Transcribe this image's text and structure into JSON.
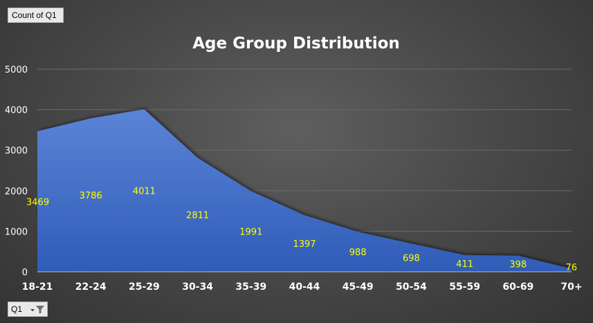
{
  "field_button": {
    "label": "Count  of Q1"
  },
  "filter_button": {
    "label": "Q1"
  },
  "chart_data": {
    "type": "area",
    "title": "Age Group Distribution",
    "categories": [
      "18-21",
      "22-24",
      "25-29",
      "30-34",
      "35-39",
      "40-44",
      "45-49",
      "50-54",
      "55-59",
      "60-69",
      "70+"
    ],
    "values": [
      3469,
      3786,
      4011,
      2811,
      1991,
      1397,
      988,
      698,
      411,
      398,
      76
    ],
    "ylim": [
      0,
      5000
    ],
    "yticks": [
      0,
      1000,
      2000,
      3000,
      4000,
      5000
    ],
    "data_labels": true,
    "grid": true,
    "legend": "none",
    "colors": {
      "fill_top": "#5b84d6",
      "fill_bottom": "#2f5cb8",
      "label": "#ffff00",
      "grid": "#6a6a6a"
    }
  }
}
